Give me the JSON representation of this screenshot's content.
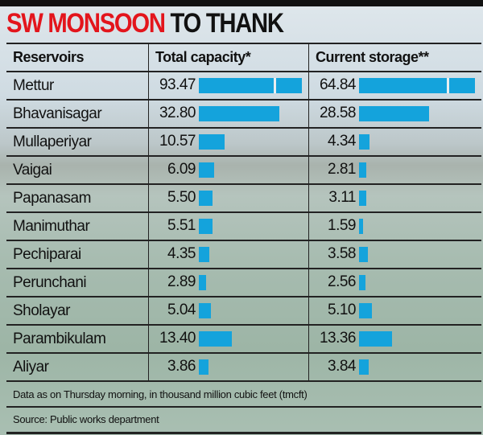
{
  "title": {
    "red": "SW MONSOON",
    "black": "TO THANK"
  },
  "chart_data": {
    "type": "table",
    "columns": [
      "Reservoirs",
      "Total capacity*",
      "Current storage**"
    ],
    "rows": [
      {
        "name": "Mettur",
        "capacity": "93.47",
        "storage": "64.84"
      },
      {
        "name": "Bhavanisagar",
        "capacity": "32.80",
        "storage": "28.58"
      },
      {
        "name": "Mullaperiyar",
        "capacity": "10.57",
        "storage": "4.34"
      },
      {
        "name": "Vaigai",
        "capacity": "6.09",
        "storage": "2.81"
      },
      {
        "name": "Papanasam",
        "capacity": "5.50",
        "storage": "3.11"
      },
      {
        "name": "Manimuthar",
        "capacity": "5.51",
        "storage": "1.59"
      },
      {
        "name": "Pechiparai",
        "capacity": "4.35",
        "storage": "3.58"
      },
      {
        "name": "Perunchani",
        "capacity": "2.89",
        "storage": "2.56"
      },
      {
        "name": "Sholayar",
        "capacity": "5.04",
        "storage": "5.10"
      },
      {
        "name": "Parambikulam",
        "capacity": "13.40",
        "storage": "13.36"
      },
      {
        "name": "Aliyar",
        "capacity": "3.86",
        "storage": "3.84"
      }
    ],
    "bar_color": "#14a3dc"
  },
  "footer": {
    "note": "Data as on Thursday morning, in thousand million cubic feet (tmcft)",
    "source": "Source: Public works department"
  }
}
